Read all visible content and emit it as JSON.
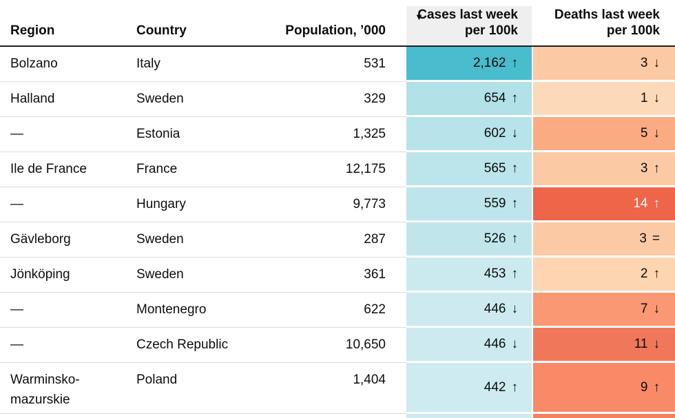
{
  "table": {
    "header": {
      "region": "Region",
      "country": "Country",
      "population": "Population, ’000",
      "cases": "Cases last week\nper 100k",
      "deaths": "Deaths last week\nper 100k",
      "sort_icon": "▼",
      "sorted_column": "cases",
      "sorted_bg": "#efefef"
    },
    "trend_symbols": {
      "up": "↑",
      "down": "↓",
      "equal": "="
    },
    "rows": [
      {
        "region": "Bolzano",
        "country": "Italy",
        "population": "531",
        "cases": {
          "value": "2,162",
          "trend": "up",
          "symbol": "↑",
          "bg": "#49bccd",
          "text": "#0d0d0d"
        },
        "deaths": {
          "value": "3",
          "trend": "down",
          "symbol": "↓",
          "bg": "#fcc9a5",
          "text": "#0d0d0d"
        }
      },
      {
        "region": "Halland",
        "country": "Sweden",
        "population": "329",
        "cases": {
          "value": "654",
          "trend": "up",
          "symbol": "↑",
          "bg": "#b2e1e8",
          "text": "#0d0d0d"
        },
        "deaths": {
          "value": "1",
          "trend": "down",
          "symbol": "↓",
          "bg": "#fcd9b8",
          "text": "#0d0d0d"
        }
      },
      {
        "region": "—",
        "country": "Estonia",
        "population": "1,325",
        "cases": {
          "value": "602",
          "trend": "down",
          "symbol": "↓",
          "bg": "#b7e3ea",
          "text": "#0d0d0d"
        },
        "deaths": {
          "value": "5",
          "trend": "down",
          "symbol": "↓",
          "bg": "#fbab81",
          "text": "#0d0d0d"
        }
      },
      {
        "region": "Ile de France",
        "country": "France",
        "population": "12,175",
        "cases": {
          "value": "565",
          "trend": "up",
          "symbol": "↑",
          "bg": "#bce5eb",
          "text": "#0d0d0d"
        },
        "deaths": {
          "value": "3",
          "trend": "up",
          "symbol": "↑",
          "bg": "#fcc9a5",
          "text": "#0d0d0d"
        }
      },
      {
        "region": "—",
        "country": "Hungary",
        "population": "9,773",
        "cases": {
          "value": "559",
          "trend": "up",
          "symbol": "↑",
          "bg": "#bde5eb",
          "text": "#0d0d0d"
        },
        "deaths": {
          "value": "14",
          "trend": "up",
          "symbol": "↑",
          "bg": "#ee6549",
          "text": "#ffffff"
        }
      },
      {
        "region": "Gävleborg",
        "country": "Sweden",
        "population": "287",
        "cases": {
          "value": "526",
          "trend": "up",
          "symbol": "↑",
          "bg": "#c0e6ec",
          "text": "#0d0d0d"
        },
        "deaths": {
          "value": "3",
          "trend": "equal",
          "symbol": "=",
          "bg": "#fcc9a5",
          "text": "#0d0d0d"
        }
      },
      {
        "region": "Jönköping",
        "country": "Sweden",
        "population": "361",
        "cases": {
          "value": "453",
          "trend": "up",
          "symbol": "↑",
          "bg": "#cbeaef",
          "text": "#0d0d0d"
        },
        "deaths": {
          "value": "2",
          "trend": "up",
          "symbol": "↑",
          "bg": "#fdd5b1",
          "text": "#0d0d0d"
        }
      },
      {
        "region": "—",
        "country": "Montenegro",
        "population": "622",
        "cases": {
          "value": "446",
          "trend": "down",
          "symbol": "↓",
          "bg": "#cceaef",
          "text": "#0d0d0d"
        },
        "deaths": {
          "value": "7",
          "trend": "down",
          "symbol": "↓",
          "bg": "#f99873",
          "text": "#0d0d0d"
        }
      },
      {
        "region": "—",
        "country": "Czech Republic",
        "population": "10,650",
        "cases": {
          "value": "446",
          "trend": "down",
          "symbol": "↓",
          "bg": "#cceaef",
          "text": "#0d0d0d"
        },
        "deaths": {
          "value": "11",
          "trend": "down",
          "symbol": "↓",
          "bg": "#f1775a",
          "text": "#0d0d0d"
        }
      },
      {
        "region": "Warminsko-\nmazurskie",
        "country": "Poland",
        "population": "1,404",
        "tall": true,
        "cases": {
          "value": "442",
          "trend": "up",
          "symbol": "↑",
          "bg": "#cdebf0",
          "text": "#0d0d0d"
        },
        "deaths": {
          "value": "9",
          "trend": "up",
          "symbol": "↑",
          "bg": "#f88a67",
          "text": "#0d0d0d"
        }
      }
    ],
    "partial_next_row": {
      "cases_bg": "#cdebf0",
      "deaths_bg": "#f5825f"
    }
  },
  "chart_data": {
    "type": "table",
    "columns": [
      "Region",
      "Country",
      "Population, ’000",
      "Cases last week per 100k",
      "Deaths last week per 100k"
    ],
    "sort": {
      "column": "Cases last week per 100k",
      "direction": "descending"
    },
    "heatmap": {
      "cases_scale": [
        "#cdebf0",
        "#49bccd"
      ],
      "deaths_scale": [
        "#fcd9b8",
        "#ee6549"
      ]
    },
    "rows": [
      {
        "region": "Bolzano",
        "country": "Italy",
        "population_000": 531,
        "cases_per_100k": 2162,
        "cases_trend": "up",
        "deaths_per_100k": 3,
        "deaths_trend": "down"
      },
      {
        "region": "Halland",
        "country": "Sweden",
        "population_000": 329,
        "cases_per_100k": 654,
        "cases_trend": "up",
        "deaths_per_100k": 1,
        "deaths_trend": "down"
      },
      {
        "region": "—",
        "country": "Estonia",
        "population_000": 1325,
        "cases_per_100k": 602,
        "cases_trend": "down",
        "deaths_per_100k": 5,
        "deaths_trend": "down"
      },
      {
        "region": "Ile de France",
        "country": "France",
        "population_000": 12175,
        "cases_per_100k": 565,
        "cases_trend": "up",
        "deaths_per_100k": 3,
        "deaths_trend": "up"
      },
      {
        "region": "—",
        "country": "Hungary",
        "population_000": 9773,
        "cases_per_100k": 559,
        "cases_trend": "up",
        "deaths_per_100k": 14,
        "deaths_trend": "up"
      },
      {
        "region": "Gävleborg",
        "country": "Sweden",
        "population_000": 287,
        "cases_per_100k": 526,
        "cases_trend": "up",
        "deaths_per_100k": 3,
        "deaths_trend": "equal"
      },
      {
        "region": "Jönköping",
        "country": "Sweden",
        "population_000": 361,
        "cases_per_100k": 453,
        "cases_trend": "up",
        "deaths_per_100k": 2,
        "deaths_trend": "up"
      },
      {
        "region": "—",
        "country": "Montenegro",
        "population_000": 622,
        "cases_per_100k": 446,
        "cases_trend": "down",
        "deaths_per_100k": 7,
        "deaths_trend": "down"
      },
      {
        "region": "—",
        "country": "Czech Republic",
        "population_000": 10650,
        "cases_per_100k": 446,
        "cases_trend": "down",
        "deaths_per_100k": 11,
        "deaths_trend": "down"
      },
      {
        "region": "Warminsko-mazurskie",
        "country": "Poland",
        "population_000": 1404,
        "cases_per_100k": 442,
        "cases_trend": "up",
        "deaths_per_100k": 9,
        "deaths_trend": "up"
      }
    ]
  }
}
